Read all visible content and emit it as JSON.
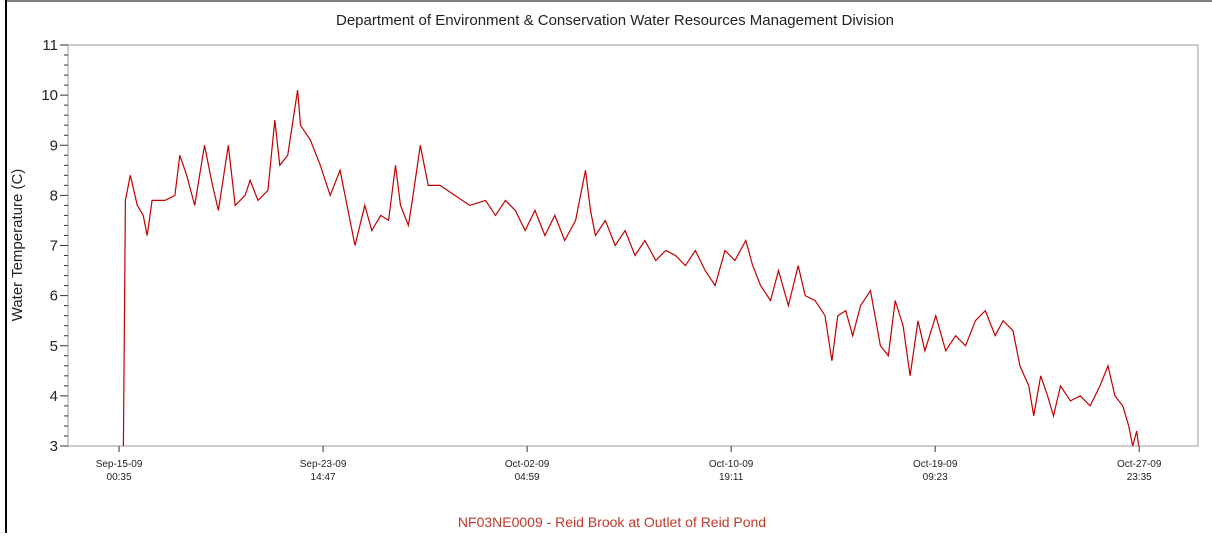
{
  "chart_data": {
    "type": "line",
    "title": "Department of Environment & Conservation Water Resources Management Division",
    "subtitle": "NF03NE0009 - Reid Brook at Outlet of Reid Pond",
    "ylabel": "Water Temperature (C)",
    "xlim": [
      "2009-09-12T21:00",
      "2009-10-30T11:00"
    ],
    "ylim": [
      3,
      11
    ],
    "yticks": [
      3,
      4,
      5,
      6,
      7,
      8,
      9,
      10,
      11
    ],
    "xticks": [
      {
        "value": "2009-09-15T00:35",
        "label": [
          "Sep-15-09",
          "00:35"
        ]
      },
      {
        "value": "2009-09-23T14:47",
        "label": [
          "Sep-23-09",
          "14:47"
        ]
      },
      {
        "value": "2009-10-02T04:59",
        "label": [
          "Oct-02-09",
          "04:59"
        ]
      },
      {
        "value": "2009-10-10T19:11",
        "label": [
          "Oct-10-09",
          "19:11"
        ]
      },
      {
        "value": "2009-10-19T09:23",
        "label": [
          "Oct-19-09",
          "09:23"
        ]
      },
      {
        "value": "2009-10-27T23:35",
        "label": [
          "Oct-27-09",
          "23:35"
        ]
      }
    ],
    "grid": false,
    "x": [
      "2009-09-15T05:00",
      "2009-09-15T07:00",
      "2009-09-15T12:00",
      "2009-09-15T19:00",
      "2009-09-16T01:00",
      "2009-09-16T05:00",
      "2009-09-16T10:00",
      "2009-09-16T23:00",
      "2009-09-17T09:00",
      "2009-09-17T14:00",
      "2009-09-17T21:00",
      "2009-09-18T05:00",
      "2009-09-18T15:00",
      "2009-09-18T23:00",
      "2009-09-19T05:00",
      "2009-09-19T15:00",
      "2009-09-19T22:00",
      "2009-09-20T08:00",
      "2009-09-20T13:00",
      "2009-09-20T21:00",
      "2009-09-21T07:00",
      "2009-09-21T14:00",
      "2009-09-21T19:00",
      "2009-09-22T03:00",
      "2009-09-22T13:00",
      "2009-09-22T16:00",
      "2009-09-23T02:00",
      "2009-09-23T12:00",
      "2009-09-23T22:00",
      "2009-09-24T08:00",
      "2009-09-24T16:00",
      "2009-09-24T23:00",
      "2009-09-25T09:00",
      "2009-09-25T16:00",
      "2009-09-26T01:00",
      "2009-09-26T09:00",
      "2009-09-26T16:00",
      "2009-09-26T21:00",
      "2009-09-27T05:00",
      "2009-09-27T09:00",
      "2009-09-27T17:00",
      "2009-09-28T01:00",
      "2009-09-28T13:00",
      "2009-09-29T04:00",
      "2009-09-29T19:00",
      "2009-09-30T11:00",
      "2009-09-30T21:00",
      "2009-10-01T07:00",
      "2009-10-01T17:00",
      "2009-10-02T03:00",
      "2009-10-02T13:00",
      "2009-10-02T23:00",
      "2009-10-03T09:00",
      "2009-10-03T19:00",
      "2009-10-04T06:00",
      "2009-10-04T16:00",
      "2009-10-04T21:00",
      "2009-10-05T02:00",
      "2009-10-05T12:00",
      "2009-10-05T22:00",
      "2009-10-06T08:00",
      "2009-10-06T18:00",
      "2009-10-07T04:00",
      "2009-10-07T15:00",
      "2009-10-08T01:00",
      "2009-10-08T11:00",
      "2009-10-08T21:00",
      "2009-10-09T07:00",
      "2009-10-09T17:00",
      "2009-10-10T03:00",
      "2009-10-10T13:00",
      "2009-10-10T23:00",
      "2009-10-11T10:00",
      "2009-10-11T17:00",
      "2009-10-12T01:00",
      "2009-10-12T11:00",
      "2009-10-12T19:00",
      "2009-10-13T05:00",
      "2009-10-13T15:00",
      "2009-10-13T22:00",
      "2009-10-14T08:00",
      "2009-10-14T18:00",
      "2009-10-15T01:00",
      "2009-10-15T07:00",
      "2009-10-15T15:00",
      "2009-10-15T22:00",
      "2009-10-16T06:00",
      "2009-10-16T16:00",
      "2009-10-17T02:00",
      "2009-10-17T10:00",
      "2009-10-17T17:00",
      "2009-10-18T01:00",
      "2009-10-18T08:00",
      "2009-10-18T16:00",
      "2009-10-18T23:00",
      "2009-10-19T10:00",
      "2009-10-19T20:00",
      "2009-10-20T06:00",
      "2009-10-20T16:00",
      "2009-10-21T02:00",
      "2009-10-21T12:00",
      "2009-10-21T22:00",
      "2009-10-22T06:00",
      "2009-10-22T16:00",
      "2009-10-22T23:00",
      "2009-10-23T08:00",
      "2009-10-23T13:00",
      "2009-10-23T20:00",
      "2009-10-24T03:00",
      "2009-10-24T09:00",
      "2009-10-24T16:00",
      "2009-10-25T02:00",
      "2009-10-25T12:00",
      "2009-10-25T22:00",
      "2009-10-26T08:00",
      "2009-10-26T16:00",
      "2009-10-26T23:00",
      "2009-10-27T07:00",
      "2009-10-27T13:00",
      "2009-10-27T17:00",
      "2009-10-27T21:00",
      "2009-10-27T23:00"
    ],
    "series": [
      {
        "color": "#c00000",
        "values": [
          3.0,
          7.9,
          8.4,
          7.8,
          7.6,
          7.2,
          7.9,
          7.9,
          8.0,
          8.8,
          8.4,
          7.8,
          9.0,
          8.2,
          7.7,
          9.0,
          7.8,
          8.0,
          8.3,
          7.9,
          8.1,
          9.5,
          8.6,
          8.8,
          10.1,
          9.4,
          9.1,
          8.6,
          8.0,
          8.5,
          7.7,
          7.0,
          7.8,
          7.3,
          7.6,
          7.5,
          8.6,
          7.8,
          7.4,
          7.9,
          9.0,
          8.2,
          8.2,
          8.0,
          7.8,
          7.9,
          7.6,
          7.9,
          7.7,
          7.3,
          7.7,
          7.2,
          7.6,
          7.1,
          7.5,
          8.5,
          7.7,
          7.2,
          7.5,
          7.0,
          7.3,
          6.8,
          7.1,
          6.7,
          6.9,
          6.8,
          6.6,
          6.9,
          6.5,
          6.2,
          6.9,
          6.7,
          7.1,
          6.6,
          6.2,
          5.9,
          6.5,
          5.8,
          6.6,
          6.0,
          5.9,
          5.6,
          4.7,
          5.6,
          5.7,
          5.2,
          5.8,
          6.1,
          5.0,
          4.8,
          5.9,
          5.4,
          4.4,
          5.5,
          4.9,
          5.6,
          4.9,
          5.2,
          5.0,
          5.5,
          5.7,
          5.2,
          5.5,
          5.3,
          4.6,
          4.2,
          3.6,
          4.4,
          4.0,
          3.6,
          4.2,
          3.9,
          4.0,
          3.8,
          4.2,
          4.6,
          4.0,
          3.8,
          3.4,
          3.0,
          3.3,
          3.0
        ]
      }
    ]
  }
}
